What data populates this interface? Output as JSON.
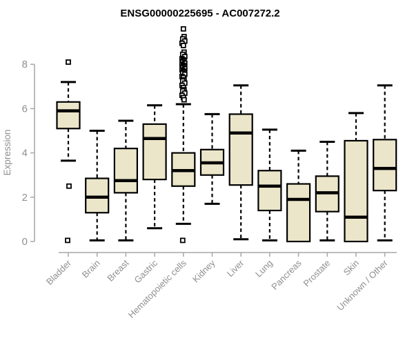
{
  "title": "ENSG00000225695 - AC007272.2",
  "chart_data": {
    "type": "boxplot",
    "title": "ENSG00000225695 - AC007272.2",
    "xlabel": "",
    "ylabel": "Expression",
    "y_ticks": [
      0,
      2,
      4,
      6,
      8
    ],
    "ylim": [
      0,
      9.8
    ],
    "grid": false,
    "legend": "none",
    "box_fill": "#EBE6CA",
    "box_stroke": "#000000",
    "median_color": "#000000",
    "whisker_color": "#000000",
    "outlier_color": "#000000",
    "axis_line_color": "#A6A6A6",
    "axis_label_color": "#8F8F8F",
    "title_color": "#000000",
    "categories": [
      "Bladder",
      "Brain",
      "Breast",
      "Gastric",
      "Hematopoietic cells",
      "Kidney",
      "Liver",
      "Lung",
      "Pancreas",
      "Prostate",
      "Skin",
      "Unknown / Other"
    ],
    "series": [
      {
        "category": "Bladder",
        "whisker_low": 3.65,
        "q1": 5.1,
        "median": 5.9,
        "q3": 6.3,
        "whisker_high": 7.2,
        "outliers": [
          8.1,
          2.5,
          0.05
        ]
      },
      {
        "category": "Brain",
        "whisker_low": 0.05,
        "q1": 1.3,
        "median": 2.0,
        "q3": 2.85,
        "whisker_high": 5.0,
        "outliers": []
      },
      {
        "category": "Breast",
        "whisker_low": 0.05,
        "q1": 2.2,
        "median": 2.75,
        "q3": 4.2,
        "whisker_high": 5.45,
        "outliers": []
      },
      {
        "category": "Gastric",
        "whisker_low": 0.6,
        "q1": 2.8,
        "median": 4.65,
        "q3": 5.3,
        "whisker_high": 6.15,
        "outliers": []
      },
      {
        "category": "Hematopoietic cells",
        "whisker_low": 0.8,
        "q1": 2.5,
        "median": 3.2,
        "q3": 4.0,
        "whisker_high": 6.2,
        "outliers": [
          9.6,
          9.25,
          9.15,
          9.05,
          8.95,
          8.85,
          8.55,
          8.45,
          8.35,
          8.25,
          8.2,
          8.15,
          8.1,
          8.05,
          8.0,
          7.95,
          7.9,
          7.85,
          7.8,
          7.75,
          7.7,
          7.65,
          7.6,
          7.55,
          7.45,
          7.4,
          7.3,
          7.25,
          7.15,
          7.05,
          6.95,
          6.85,
          6.8,
          6.7,
          6.6,
          6.5,
          6.4,
          0.05
        ]
      },
      {
        "category": "Kidney",
        "whisker_low": 1.7,
        "q1": 3.0,
        "median": 3.55,
        "q3": 4.15,
        "whisker_high": 5.75,
        "outliers": []
      },
      {
        "category": "Liver",
        "whisker_low": 0.1,
        "q1": 2.55,
        "median": 4.9,
        "q3": 5.75,
        "whisker_high": 7.05,
        "outliers": []
      },
      {
        "category": "Lung",
        "whisker_low": 0.05,
        "q1": 1.4,
        "median": 2.5,
        "q3": 3.2,
        "whisker_high": 5.05,
        "outliers": []
      },
      {
        "category": "Pancreas",
        "whisker_low": 0,
        "q1": 0,
        "median": 1.9,
        "q3": 2.6,
        "whisker_high": 4.1,
        "outliers": []
      },
      {
        "category": "Prostate",
        "whisker_low": 0.05,
        "q1": 1.35,
        "median": 2.2,
        "q3": 2.95,
        "whisker_high": 4.5,
        "outliers": []
      },
      {
        "category": "Skin",
        "whisker_low": 0,
        "q1": 0,
        "median": 1.1,
        "q3": 4.55,
        "whisker_high": 5.8,
        "outliers": []
      },
      {
        "category": "Unknown / Other",
        "whisker_low": 0.05,
        "q1": 2.3,
        "median": 3.3,
        "q3": 4.6,
        "whisker_high": 7.05,
        "outliers": []
      }
    ]
  }
}
